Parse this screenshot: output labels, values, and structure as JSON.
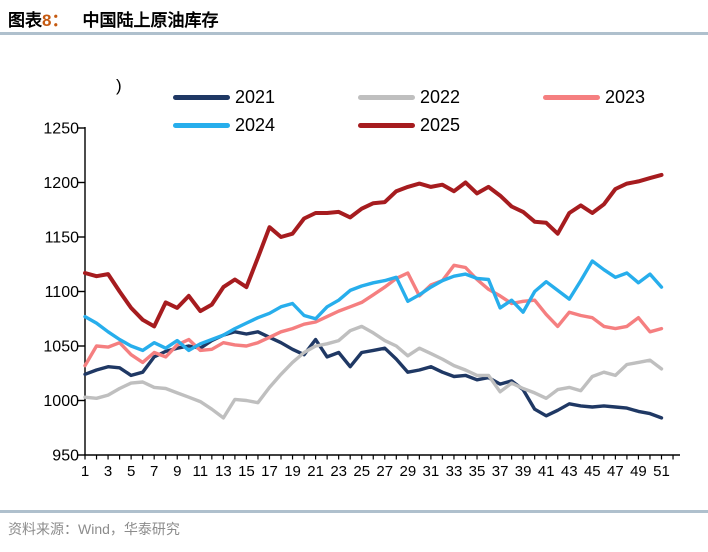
{
  "header": {
    "figure_prefix": "图表",
    "figure_number": "8：",
    "title": "中国陆上原油库存"
  },
  "legend": {
    "unit_fragment": ")"
  },
  "footer": {
    "source": "资料来源：Wind，华泰研究"
  },
  "chart_data": {
    "type": "line",
    "title": "中国陆上原油库存",
    "xlabel": "",
    "ylabel": "",
    "xlim": [
      1,
      52
    ],
    "ylim": [
      950,
      1250
    ],
    "grid": false,
    "legend_position": "top",
    "y_ticks": [
      950,
      1000,
      1050,
      1100,
      1150,
      1200,
      1250
    ],
    "x_tick_labels": [
      "1",
      "3",
      "5",
      "7",
      "9",
      "11",
      "13",
      "15",
      "17",
      "19",
      "21",
      "23",
      "25",
      "27",
      "29",
      "31",
      "33",
      "35",
      "37",
      "39",
      "41",
      "43",
      "45",
      "47",
      "49",
      "51"
    ],
    "x": [
      1,
      2,
      3,
      4,
      5,
      6,
      7,
      8,
      9,
      10,
      11,
      12,
      13,
      14,
      15,
      16,
      17,
      18,
      19,
      20,
      21,
      22,
      23,
      24,
      25,
      26,
      27,
      28,
      29,
      30,
      31,
      32,
      33,
      34,
      35,
      36,
      37,
      38,
      39,
      40,
      41,
      42,
      43,
      44,
      45,
      46,
      47,
      48,
      49,
      50,
      51
    ],
    "series": [
      {
        "name": "2021",
        "color": "#1F3864",
        "values": [
          1024,
          1028,
          1031,
          1030,
          1023,
          1026,
          1040,
          1045,
          1048,
          1050,
          1048,
          1055,
          1060,
          1063,
          1061,
          1063,
          1058,
          1053,
          1047,
          1042,
          1056,
          1040,
          1044,
          1031,
          1044,
          1046,
          1048,
          1038,
          1026,
          1028,
          1031,
          1026,
          1022,
          1023,
          1019,
          1021,
          1015,
          1018,
          1010,
          992,
          986,
          991,
          997,
          995,
          994,
          995,
          994,
          993,
          990,
          988,
          984
        ]
      },
      {
        "name": "2022",
        "color": "#BFBFBF",
        "values": [
          1003,
          1002,
          1005,
          1011,
          1016,
          1017,
          1012,
          1011,
          1007,
          1003,
          999,
          992,
          984,
          1001,
          1000,
          998,
          1012,
          1024,
          1035,
          1044,
          1050,
          1052,
          1055,
          1064,
          1068,
          1062,
          1055,
          1050,
          1041,
          1048,
          1043,
          1038,
          1032,
          1028,
          1023,
          1023,
          1008,
          1016,
          1011,
          1007,
          1002,
          1010,
          1012,
          1009,
          1022,
          1026,
          1023,
          1033,
          1035,
          1037,
          1029
        ]
      },
      {
        "name": "2023",
        "color": "#F57F80",
        "values": [
          1032,
          1050,
          1049,
          1053,
          1042,
          1035,
          1044,
          1040,
          1051,
          1056,
          1046,
          1047,
          1053,
          1051,
          1050,
          1053,
          1058,
          1063,
          1066,
          1070,
          1072,
          1077,
          1082,
          1086,
          1090,
          1097,
          1104,
          1112,
          1117,
          1096,
          1106,
          1110,
          1124,
          1122,
          1111,
          1102,
          1096,
          1089,
          1091,
          1092,
          1079,
          1068,
          1081,
          1078,
          1076,
          1068,
          1066,
          1068,
          1076,
          1063,
          1066
        ]
      },
      {
        "name": "2024",
        "color": "#27AEEC",
        "values": [
          1077,
          1071,
          1063,
          1056,
          1050,
          1046,
          1053,
          1048,
          1055,
          1046,
          1052,
          1056,
          1060,
          1066,
          1071,
          1076,
          1080,
          1086,
          1089,
          1078,
          1075,
          1086,
          1092,
          1101,
          1105,
          1108,
          1110,
          1113,
          1091,
          1097,
          1104,
          1110,
          1114,
          1116,
          1112,
          1111,
          1085,
          1092,
          1081,
          1100,
          1109,
          1101,
          1093,
          1110,
          1128,
          1120,
          1113,
          1117,
          1108,
          1116,
          1104
        ]
      },
      {
        "name": "2025",
        "color": "#A61C1F",
        "values": [
          1117,
          1114,
          1116,
          1100,
          1085,
          1074,
          1068,
          1090,
          1085,
          1096,
          1082,
          1088,
          1104,
          1111,
          1104,
          1131,
          1159,
          1150,
          1153,
          1167,
          1172,
          1172,
          1173,
          1168,
          1176,
          1181,
          1182,
          1192,
          1196,
          1199,
          1196,
          1198,
          1192,
          1200,
          1190,
          1196,
          1188,
          1178,
          1173,
          1164,
          1163,
          1153,
          1172,
          1179,
          1172,
          1180,
          1194,
          1199,
          1201,
          1204,
          1207
        ]
      }
    ]
  }
}
